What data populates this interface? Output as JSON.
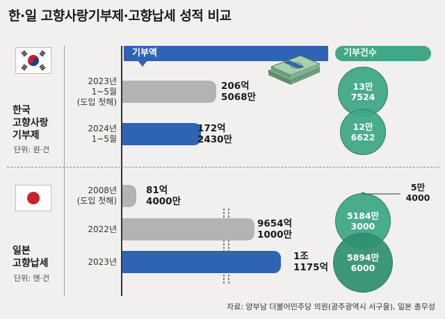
{
  "title": "한·일 고향사랑기부제·고향납세 성적 비교",
  "headers": {
    "amount": "기부액",
    "count": "기부건수"
  },
  "source": "자료: 양부남 더불어민주당 의원(광주광역시 서구을), 일본 총무성",
  "chart_data": {
    "type": "bar",
    "groups": [
      {
        "country": "한국 고향사랑 기부제",
        "country_lines": [
          "한국",
          "고향사랑",
          "기부제"
        ],
        "unit": "단위: 원·건",
        "rows": [
          {
            "label": [
              "2023년",
              "1~5월",
              "(도입 첫해)"
            ],
            "amount_value": 20650680000,
            "amount_text": [
              "206억",
              "5068만"
            ],
            "count_value": 137524,
            "count_text": [
              "13만",
              "7524"
            ],
            "color": "#b3b3b3"
          },
          {
            "label": [
              "2024년",
              "1~5월"
            ],
            "amount_value": 17224300000,
            "amount_text": [
              "172억",
              "2430만"
            ],
            "count_value": 126622,
            "count_text": [
              "12만",
              "6622"
            ],
            "color": "#2f64b4"
          }
        ]
      },
      {
        "country": "일본 고향납세",
        "country_lines": [
          "일본",
          "고향납세"
        ],
        "unit": "단위: 엔·건",
        "rows": [
          {
            "label": [
              "2008년",
              "(도입 첫해)"
            ],
            "amount_value": 8140000000,
            "amount_text": [
              "81억",
              "4000만"
            ],
            "count_value": 54000,
            "count_text": [
              "5만",
              "4000"
            ],
            "color": "#b3b3b3"
          },
          {
            "label": [
              "2022년"
            ],
            "amount_value": 965410000000,
            "amount_text": [
              "9654억",
              "1000만"
            ],
            "count_value": 51843000,
            "count_text": [
              "5184만",
              "3000"
            ],
            "color": "#b3b3b3"
          },
          {
            "label": [
              "2023년"
            ],
            "amount_value": 1117500000000,
            "amount_text": [
              "1조",
              "1175억"
            ],
            "count_value": 58946000,
            "count_text": [
              "5894만",
              "6000"
            ],
            "color": "#2f64b4"
          }
        ]
      }
    ]
  },
  "colors": {
    "blue": "#2f64b4",
    "gray": "#b3b3b3",
    "green": "#3fa887",
    "green_dark": "#2e8f6f"
  },
  "icons": {
    "kr_flag": "korea-flag-icon",
    "jp_flag": "japan-flag-icon",
    "money": "money-stack-icon"
  }
}
